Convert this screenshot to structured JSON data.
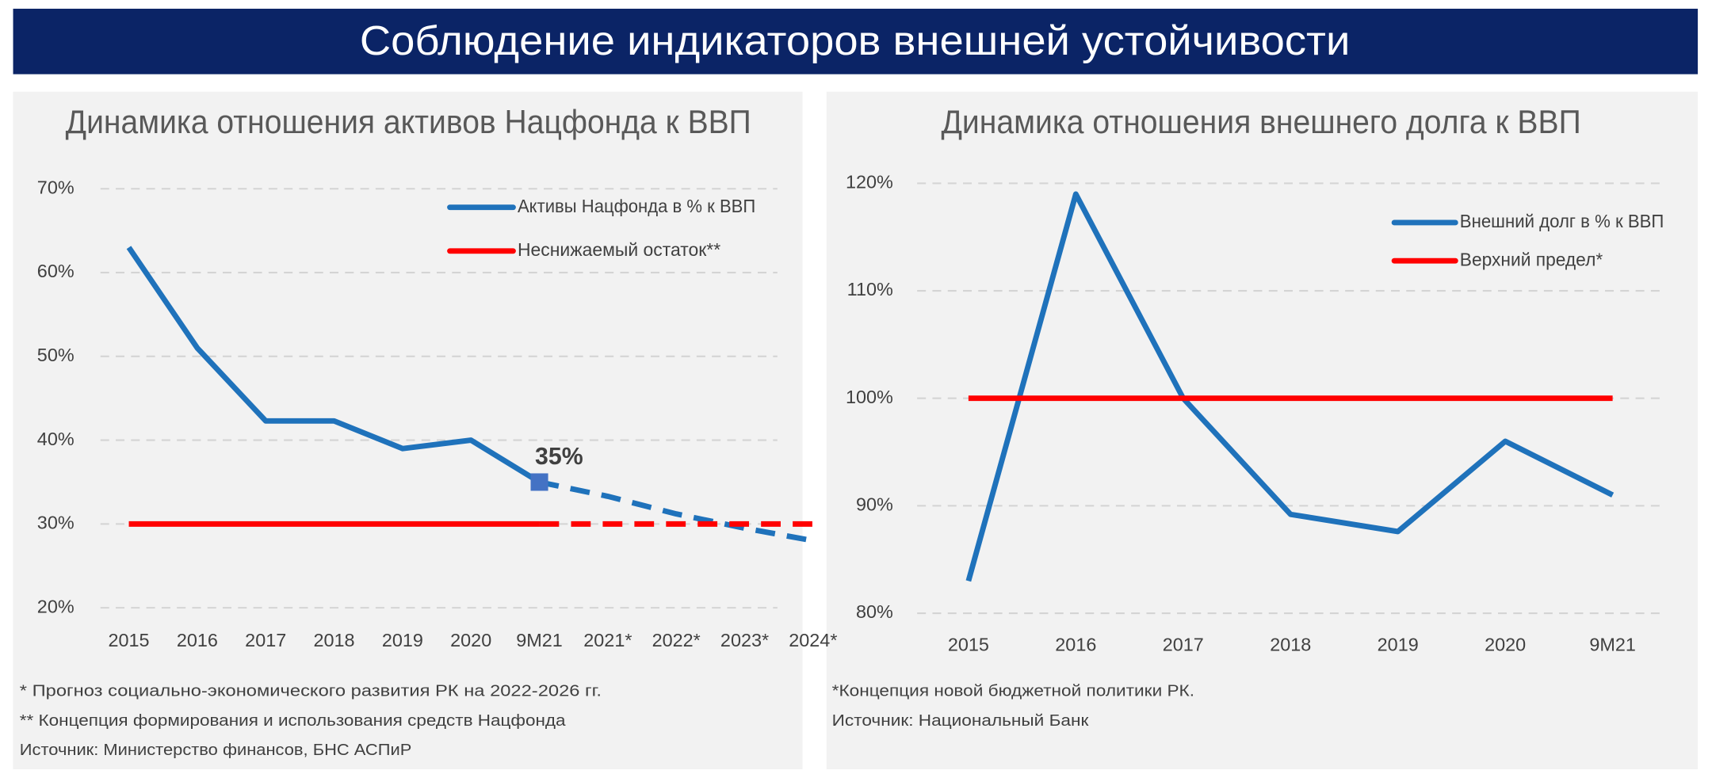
{
  "title": "Соблюдение индикаторов внешней устойчивости",
  "chart_data": [
    {
      "type": "line",
      "title": "Динамика отношения активов Нацфонда к ВВП",
      "categories": [
        "2015",
        "2016",
        "2017",
        "2018",
        "2019",
        "2020",
        "9M21",
        "2021*",
        "2022*",
        "2023*",
        "2024*"
      ],
      "series": [
        {
          "name": "Активы Нацфонда в % к ВВП",
          "color": "#1f72bb",
          "dashed_from": "9M21",
          "values": [
            63,
            51,
            42.3,
            42.3,
            39,
            40,
            35,
            33.3,
            31.2,
            29.5,
            28
          ],
          "value_labels": [
            null,
            null,
            null,
            null,
            null,
            null,
            "35%",
            null,
            null,
            null,
            null
          ]
        },
        {
          "name": "Неснижаемый остаток**",
          "color": "#ff0000",
          "dashed_from": "9M21",
          "values": [
            30,
            30,
            30,
            30,
            30,
            30,
            30,
            30,
            30,
            30,
            30
          ]
        }
      ],
      "ylim": [
        20,
        70
      ],
      "yticks": [
        {
          "value": 20,
          "label": "20%"
        },
        {
          "value": 30,
          "label": "30%"
        },
        {
          "value": 40,
          "label": "40%"
        },
        {
          "value": 50,
          "label": "50%"
        },
        {
          "value": 60,
          "label": "60%"
        },
        {
          "value": 70,
          "label": "70%"
        }
      ],
      "grid": true,
      "legend": "top-right",
      "notes": [
        "* Прогноз социально-экономического развития РК на 2022-2026 гг.",
        "** Концепция формирования и использования средств Нацфонда",
        "Источник: Министерство финансов, БНС АСПиР"
      ]
    },
    {
      "type": "line",
      "title": "Динамика отношения внешнего долга к ВВП",
      "categories": [
        "2015",
        "2016",
        "2017",
        "2018",
        "2019",
        "2020",
        "9M21"
      ],
      "series": [
        {
          "name": "Внешний долг в % к ВВП",
          "color": "#1f72bb",
          "values": [
            83,
            119,
            100,
            89.2,
            87.6,
            96,
            91
          ]
        },
        {
          "name": "Верхний предел*",
          "color": "#ff0000",
          "values": [
            100,
            100,
            100,
            100,
            100,
            100,
            100
          ]
        }
      ],
      "ylim": [
        80,
        120
      ],
      "yticks": [
        {
          "value": 80,
          "label": "80%"
        },
        {
          "value": 90,
          "label": "90%"
        },
        {
          "value": 100,
          "label": "100%"
        },
        {
          "value": 110,
          "label": "110%"
        },
        {
          "value": 120,
          "label": "120%"
        }
      ],
      "grid": true,
      "legend": "top-right",
      "notes": [
        "*Концепция новой бюджетной политики РК.",
        "Источник: Национальный Банк"
      ]
    }
  ]
}
